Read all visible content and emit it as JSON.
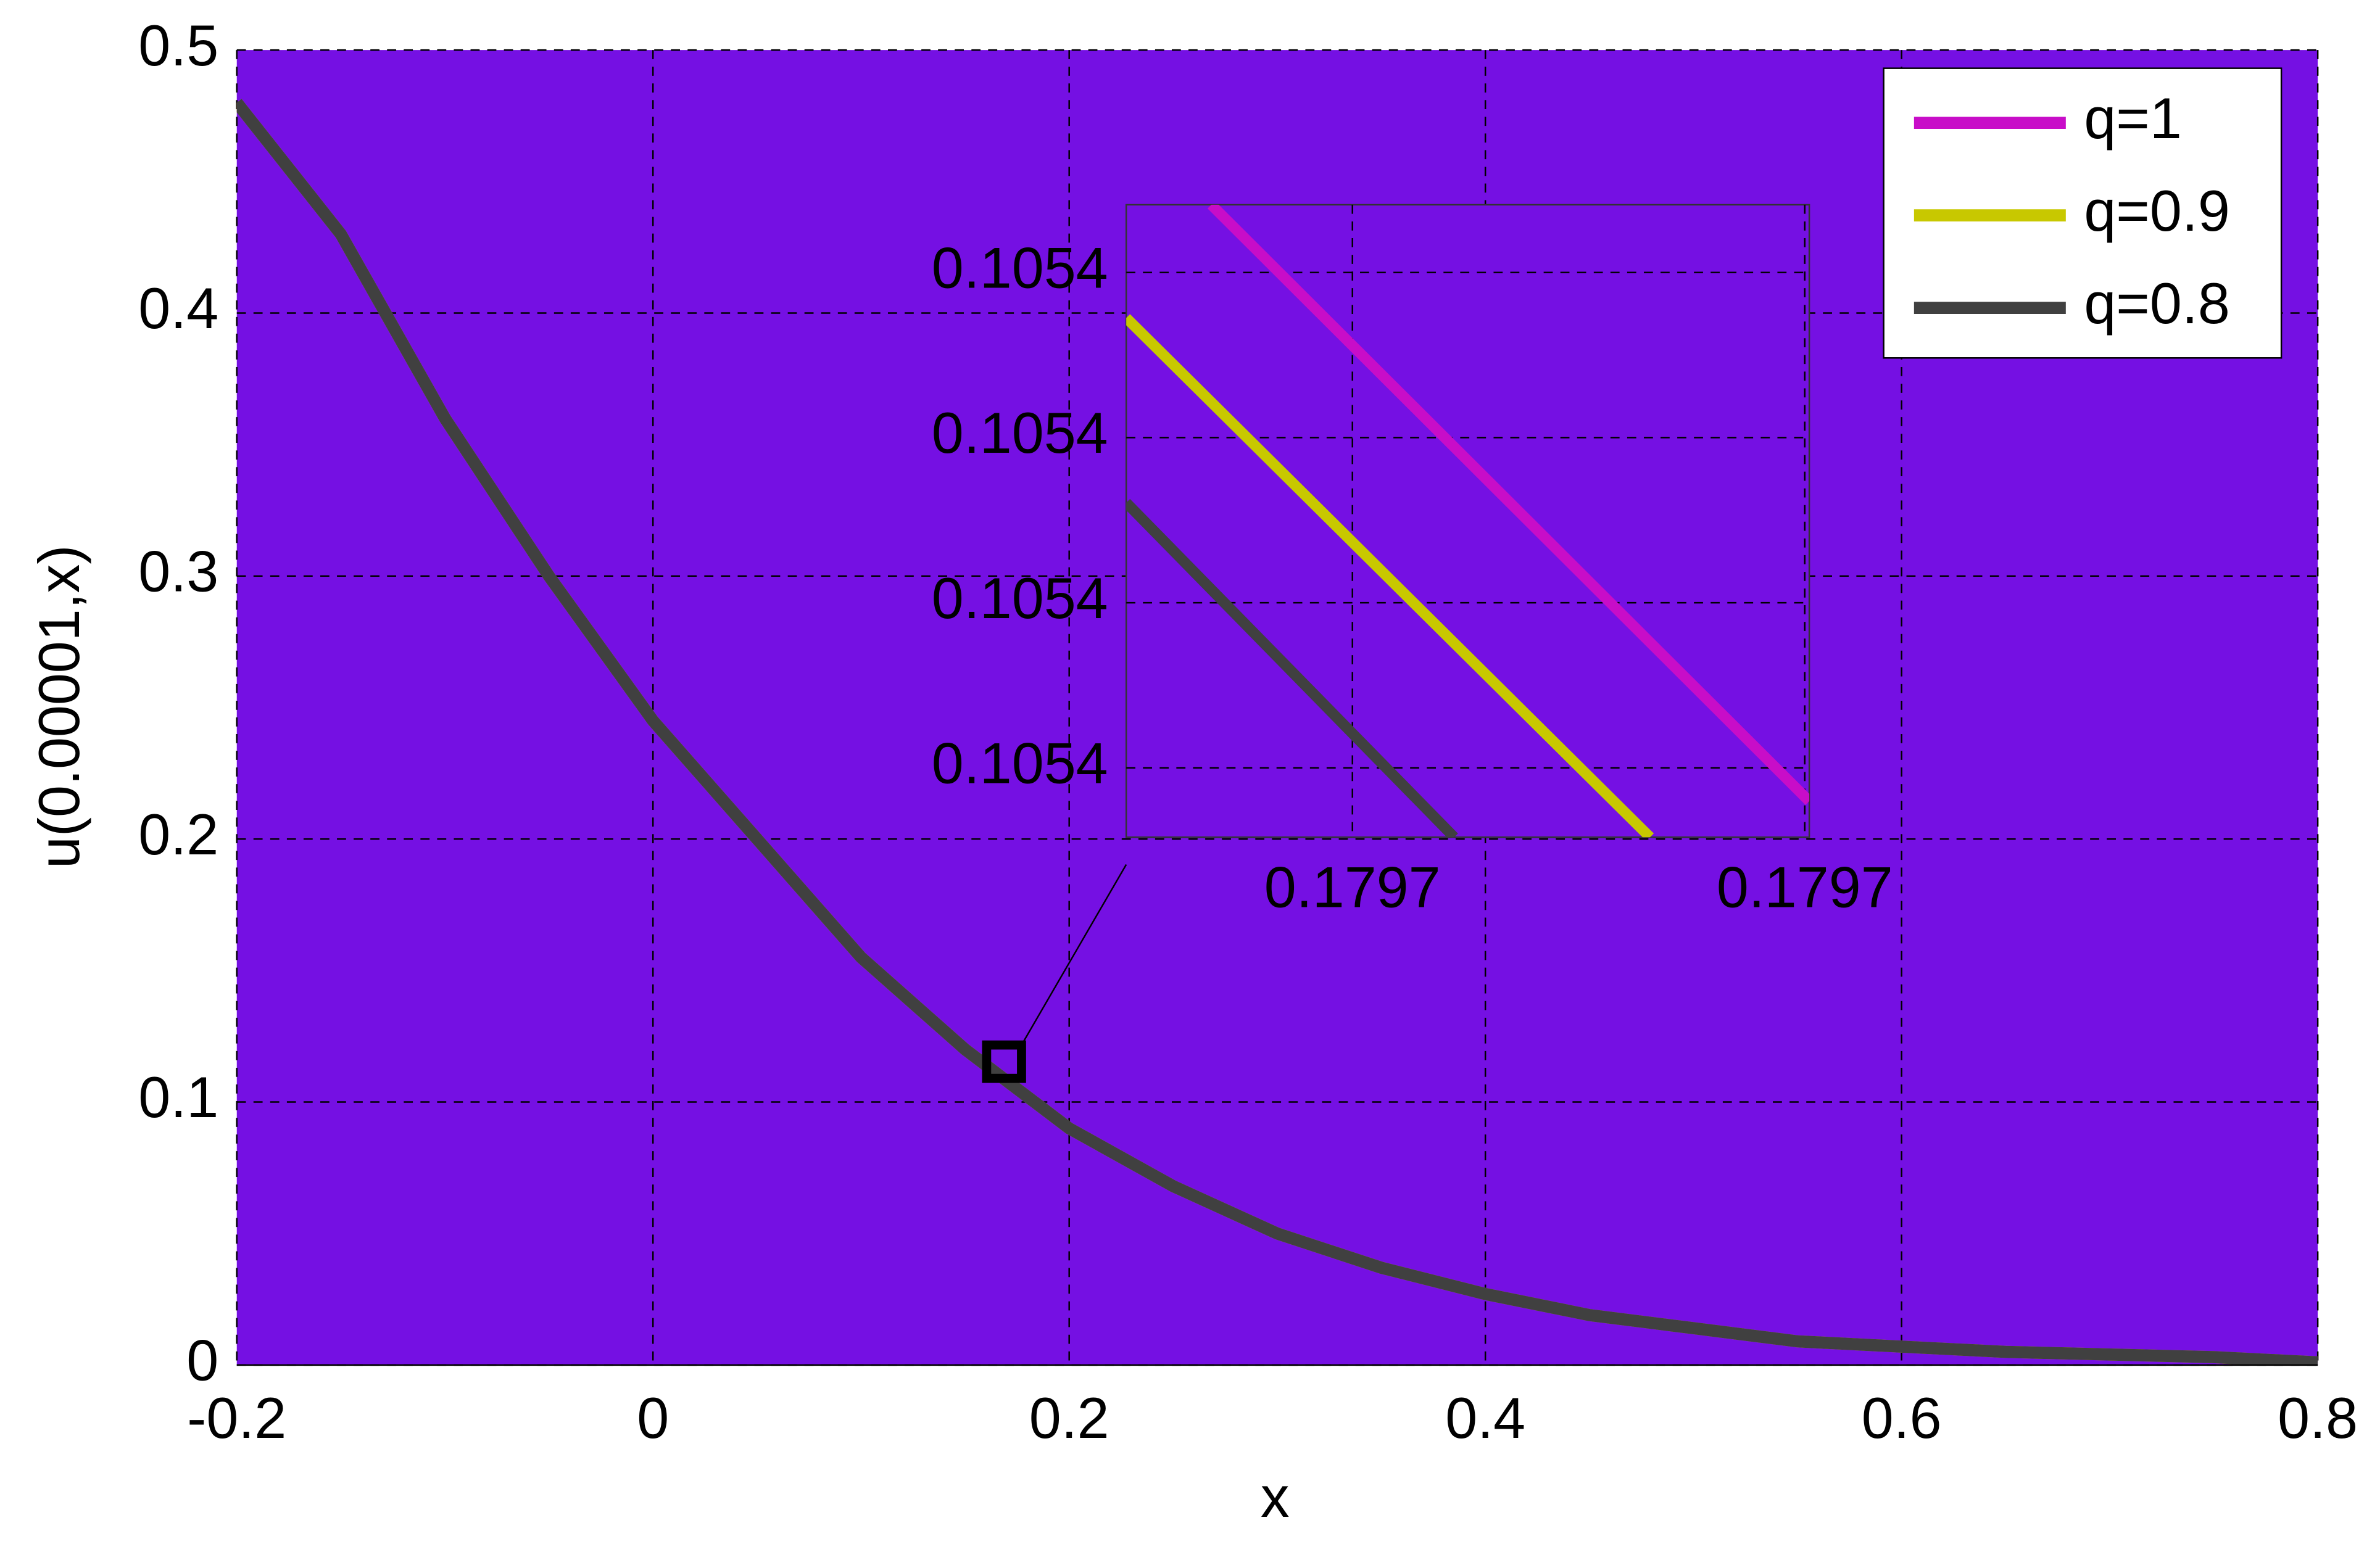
{
  "chart_data": [
    {
      "type": "line",
      "x_label": "x",
      "y_label": "u(0.00001,x)",
      "x": [
        -0.2,
        -0.15,
        -0.1,
        -0.05,
        0,
        0.05,
        0.1,
        0.15,
        0.2,
        0.25,
        0.3,
        0.35,
        0.4,
        0.45,
        0.5,
        0.55,
        0.6,
        0.65,
        0.7,
        0.75,
        0.8
      ],
      "series": [
        {
          "name": "q=1",
          "color": "#c80dc8",
          "values": [
            0.48,
            0.43,
            0.36,
            0.3,
            0.245,
            0.2,
            0.155,
            0.12,
            0.09,
            0.068,
            0.05,
            0.037,
            0.027,
            0.019,
            0.014,
            0.009,
            0.007,
            0.005,
            0.004,
            0.003,
            0.001
          ]
        },
        {
          "name": "q=0.9",
          "color": "#c8c800",
          "values": [
            0.48,
            0.43,
            0.36,
            0.3,
            0.245,
            0.2,
            0.155,
            0.12,
            0.09,
            0.068,
            0.05,
            0.037,
            0.027,
            0.019,
            0.014,
            0.009,
            0.007,
            0.005,
            0.004,
            0.003,
            0.001
          ]
        },
        {
          "name": "q=0.8",
          "color": "#404040",
          "values": [
            0.48,
            0.43,
            0.36,
            0.3,
            0.245,
            0.2,
            0.155,
            0.12,
            0.09,
            0.068,
            0.05,
            0.037,
            0.027,
            0.019,
            0.014,
            0.009,
            0.007,
            0.005,
            0.004,
            0.003,
            0.001
          ]
        }
      ],
      "xlim": [
        -0.2,
        0.8
      ],
      "xticks": [
        -0.2,
        0,
        0.2,
        0.4,
        0.6,
        0.8
      ],
      "ylim": [
        0,
        0.5
      ],
      "yticks": [
        0,
        0.1,
        0.2,
        0.3,
        0.4,
        0.5
      ],
      "grid": true,
      "background": "#7510e3",
      "legend": "upper right"
    },
    {
      "type": "line",
      "series": [
        {
          "color": "#c80dc8",
          "x": [
            0.17969688,
            0.1797101
          ],
          "values": [
            0.1054441,
            0.10540798
          ]
        },
        {
          "color": "#c8c800",
          "x": [
            0.179695,
            0.17970658
          ],
          "values": [
            0.10543725,
            0.1054058
          ]
        },
        {
          "color": "#404040",
          "x": [
            0.179695,
            0.17970225
          ],
          "values": [
            0.10542606,
            0.1054058
          ]
        }
      ],
      "xlim": [
        0.179695,
        0.1797101
      ],
      "xticks": [
        {
          "value": 0.1797,
          "label": "0.1797"
        },
        {
          "value": 0.17971,
          "label": "0.1797"
        }
      ],
      "ylim": [
        0.1054058,
        0.1054441
      ],
      "yticks": [
        {
          "value": 0.10541,
          "label": "0.1054"
        },
        {
          "value": 0.10542,
          "label": "0.1054"
        },
        {
          "value": 0.10543,
          "label": "0.1054"
        },
        {
          "value": 0.10544,
          "label": "0.1054"
        }
      ],
      "grid": true,
      "background": "#7510e3"
    }
  ]
}
